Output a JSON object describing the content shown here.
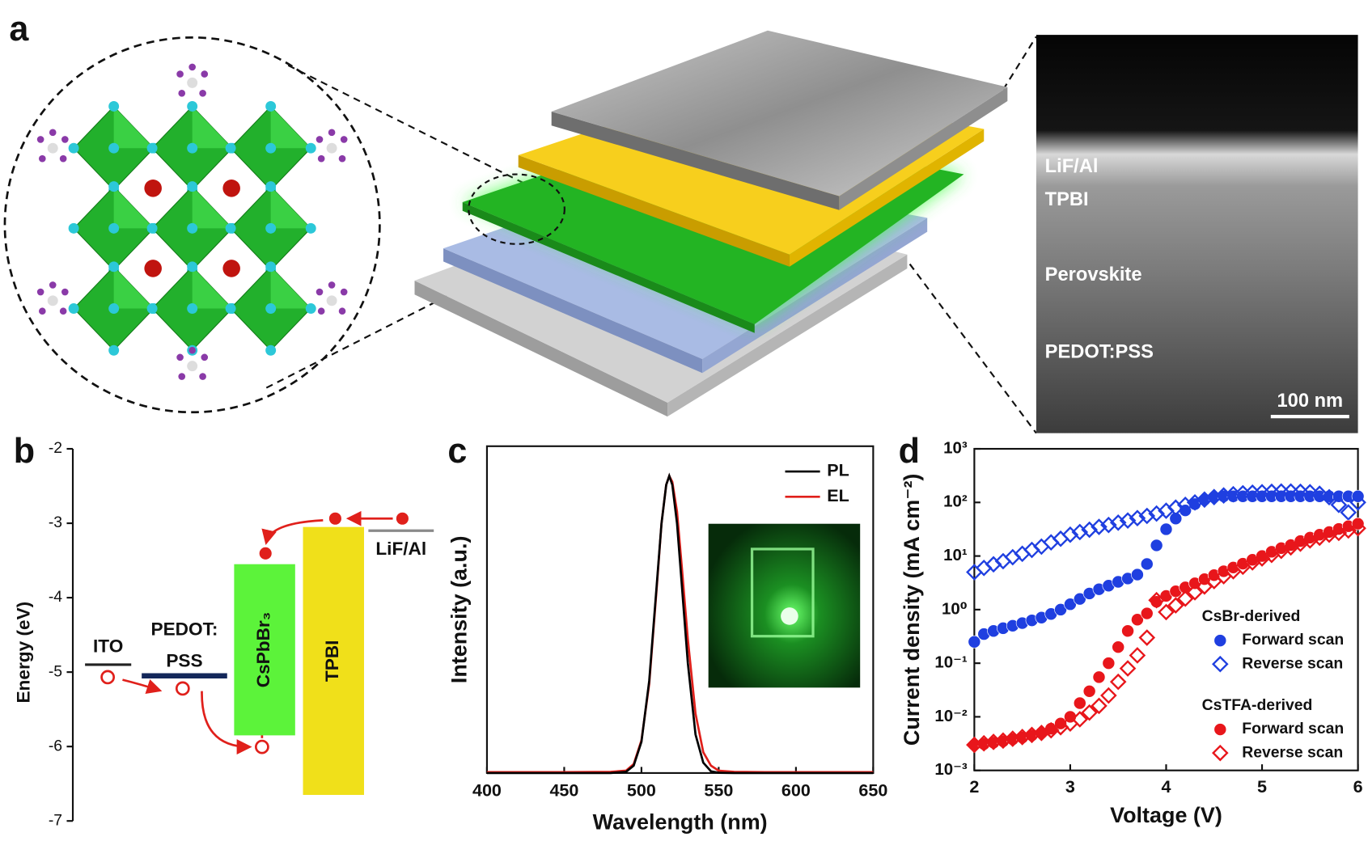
{
  "illustration": {
    "panel": "a",
    "sem_labels": [
      "LiF/Al",
      "TPBI",
      "Perovskite",
      "PEDOT:PSS"
    ],
    "scale_bar": "100 nm"
  },
  "chart_data": [
    {
      "type": "energy",
      "panel": "b",
      "ylabel": "Energy (eV)",
      "ylim": [
        -7,
        -2
      ],
      "yticks": [
        -2,
        -3,
        -4,
        -5,
        -6,
        -7
      ],
      "levels": [
        {
          "label": [
            "ITO"
          ],
          "energy": -4.9,
          "color": "#222222"
        },
        {
          "label": [
            "PEDOT:",
            "PSS"
          ],
          "energy": -5.05,
          "color": "#13275a"
        },
        {
          "label": [
            "CsPbBr₃"
          ],
          "top": -3.55,
          "bottom": -5.85,
          "color": "#5cf33a"
        },
        {
          "label": [
            "TPBI"
          ],
          "top": -3.05,
          "bottom": -6.65,
          "color": "#f0e01a"
        },
        {
          "label": [
            "LiF/Al"
          ],
          "energy": -3.1,
          "color": "#8a8a8a"
        }
      ]
    },
    {
      "type": "line",
      "panel": "c",
      "xlabel": "Wavelength (nm)",
      "ylabel": "Intensity (a.u.)",
      "xlim": [
        400,
        650
      ],
      "xticks": [
        400,
        450,
        500,
        550,
        600,
        650
      ],
      "ylim": [
        0,
        1.1
      ],
      "legend": "upper right",
      "x": [
        400,
        450,
        480,
        490,
        495,
        500,
        505,
        510,
        513,
        516,
        518,
        520,
        523,
        526,
        530,
        535,
        540,
        545,
        550,
        560,
        580,
        600,
        650
      ],
      "series": [
        {
          "name": "PL",
          "color": "#000000",
          "values": [
            0,
            0,
            0,
            0.004,
            0.025,
            0.105,
            0.31,
            0.64,
            0.84,
            0.97,
            1,
            0.97,
            0.84,
            0.64,
            0.37,
            0.13,
            0.035,
            0.006,
            0.001,
            0,
            0,
            0,
            0
          ]
        },
        {
          "name": "EL",
          "color": "#e0201b",
          "values": [
            0.003,
            0.003,
            0.004,
            0.008,
            0.03,
            0.11,
            0.3,
            0.63,
            0.84,
            0.97,
            1,
            0.98,
            0.88,
            0.7,
            0.45,
            0.2,
            0.07,
            0.025,
            0.008,
            0.004,
            0.003,
            0.003,
            0.003
          ]
        }
      ]
    },
    {
      "type": "scatter",
      "panel": "d",
      "xlabel": "Voltage (V)",
      "ylabel": "Current density (mA cm⁻²)",
      "xlim": [
        2,
        6
      ],
      "xticks": [
        2,
        3,
        4,
        5,
        6
      ],
      "ylim": [
        0.001,
        1000
      ],
      "log_y": true,
      "legend": "lower right",
      "yticks": [
        {
          "value": 0.001,
          "label": "10⁻³"
        },
        {
          "value": 0.01,
          "label": "10⁻²"
        },
        {
          "value": 0.1,
          "label": "10⁻¹"
        },
        {
          "value": 1,
          "label": "10⁰"
        },
        {
          "value": 10,
          "label": "10¹"
        },
        {
          "value": 100,
          "label": "10²"
        },
        {
          "value": 1000,
          "label": "10³"
        }
      ],
      "x": [
        2,
        2.1,
        2.2,
        2.3,
        2.4,
        2.5,
        2.6,
        2.7,
        2.8,
        2.9,
        3,
        3.1,
        3.2,
        3.3,
        3.4,
        3.5,
        3.6,
        3.7,
        3.8,
        3.9,
        4,
        4.1,
        4.2,
        4.3,
        4.4,
        4.5,
        4.6,
        4.7,
        4.8,
        4.9,
        5,
        5.1,
        5.2,
        5.3,
        5.4,
        5.5,
        5.6,
        5.7,
        5.8,
        5.9,
        6
      ],
      "groups": [
        {
          "title": "CsBr-derived",
          "series": [
            {
              "name": "Forward scan",
              "color": "#1f3fe0",
              "marker": "circle",
              "values": [
                0.25,
                0.35,
                0.4,
                0.45,
                0.5,
                0.56,
                0.63,
                0.71,
                0.83,
                1,
                1.26,
                1.58,
                2,
                2.4,
                2.8,
                3.3,
                3.8,
                4.5,
                7.1,
                15.8,
                31.6,
                50,
                71,
                93,
                112,
                126,
                130,
                130,
                130,
                130,
                130,
                130,
                130,
                130,
                130,
                130,
                130,
                130,
                130,
                130,
                130
              ]
            },
            {
              "name": "Reverse scan",
              "color": "#1f3fe0",
              "marker": "diamond",
              "values": [
                5,
                6,
                7,
                8,
                9.5,
                11,
                13,
                15,
                18,
                21,
                25,
                28,
                31,
                35,
                38,
                42,
                46,
                51,
                56,
                62,
                70,
                80,
                90,
                100,
                113,
                126,
                135,
                142,
                148,
                152,
                155,
                158,
                160,
                160,
                158,
                155,
                145,
                125,
                90,
                65,
                100
              ]
            }
          ]
        },
        {
          "title": "CsTFA-derived",
          "series": [
            {
              "name": "Forward scan",
              "color": "#e8161b",
              "marker": "circle",
              "values": [
                0.003,
                0.0031,
                0.0033,
                0.0035,
                0.0038,
                0.0041,
                0.0045,
                0.005,
                0.006,
                0.0075,
                0.01,
                0.018,
                0.03,
                0.055,
                0.1,
                0.2,
                0.4,
                0.65,
                0.85,
                1.4,
                1.8,
                2.2,
                2.6,
                3.1,
                3.7,
                4.4,
                5.2,
                6.1,
                7.2,
                8.5,
                10,
                12,
                14,
                16,
                19,
                22,
                25,
                28,
                32,
                36,
                40
              ]
            },
            {
              "name": "Reverse scan",
              "color": "#e8161b",
              "marker": "diamond",
              "values": [
                0.003,
                0.0032,
                0.0034,
                0.0036,
                0.0039,
                0.0042,
                0.0046,
                0.005,
                0.0056,
                0.0064,
                0.0075,
                0.009,
                0.012,
                0.016,
                0.025,
                0.045,
                0.08,
                0.14,
                0.3,
                1.5,
                0.9,
                1.2,
                1.6,
                2.1,
                2.7,
                3.4,
                4.2,
                5.2,
                6.3,
                7.6,
                9,
                10.5,
                12.5,
                14.5,
                17,
                19.5,
                22,
                25,
                27,
                30,
                33
              ]
            }
          ]
        }
      ]
    }
  ]
}
